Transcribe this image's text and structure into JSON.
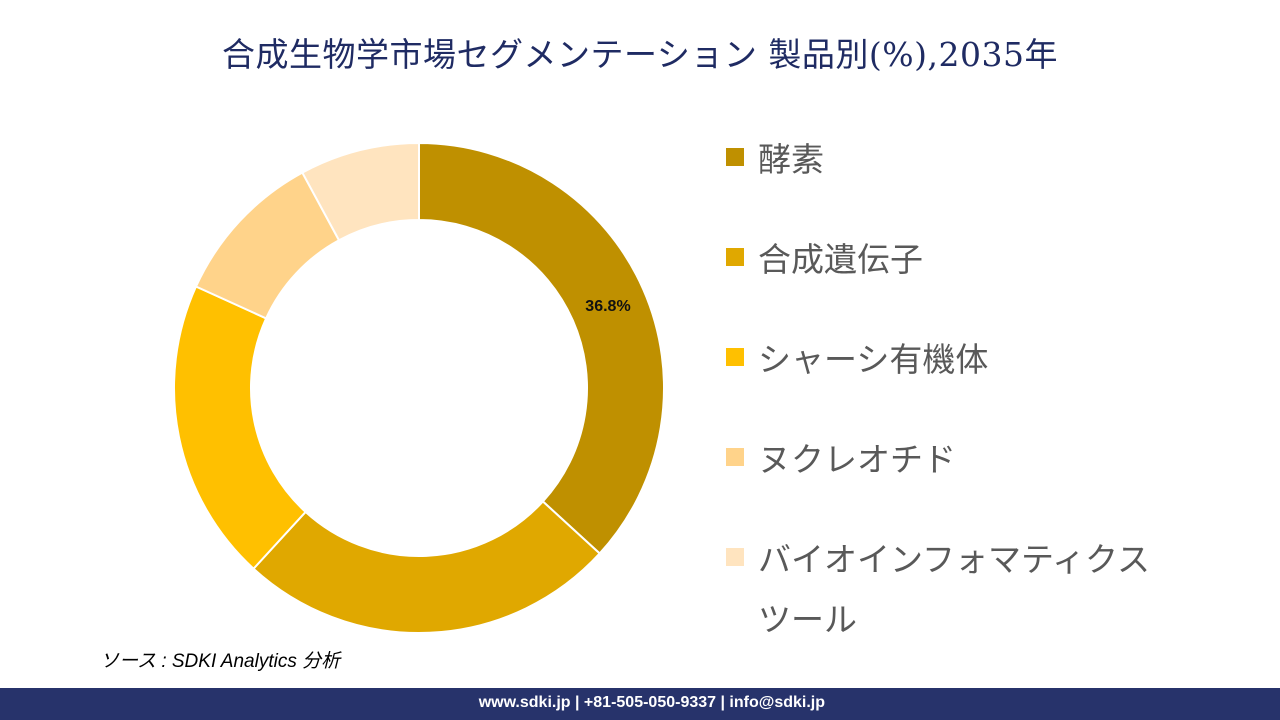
{
  "chart_data": {
    "type": "pie",
    "variant": "donut",
    "title": "合成生物学市場セグメンテーション 製品別(%),2035年",
    "categories": [
      "酵素",
      "合成遺伝子",
      "シャーシ有機体",
      "ヌクレオチド",
      "バイオインフォマティクスツール"
    ],
    "values": [
      36.8,
      25.0,
      20.0,
      10.3,
      7.9
    ],
    "colors": [
      "#BF9000",
      "#E0A800",
      "#FFC000",
      "#FFD38A",
      "#FFE4BF"
    ],
    "data_labels": [
      "36.8%",
      "",
      "",
      "",
      ""
    ],
    "legend_position": "right",
    "start_angle": "top, clockwise"
  },
  "source": "ソース : SDKI Analytics 分析",
  "footer": "www.sdki.jp | +81-505-050-9337 | info@sdki.jp"
}
